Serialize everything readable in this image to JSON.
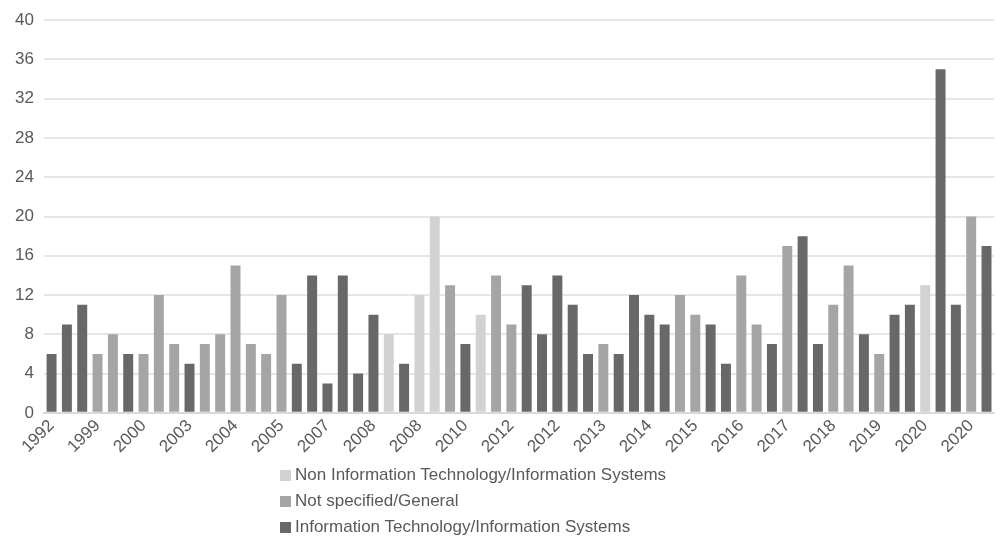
{
  "chart_data": {
    "type": "bar",
    "categories": [
      "1992",
      null,
      null,
      "1999",
      null,
      null,
      "2000",
      null,
      null,
      "2003",
      null,
      null,
      "2004",
      null,
      null,
      "2005",
      null,
      null,
      "2007",
      null,
      null,
      "2008",
      null,
      null,
      "2008",
      null,
      null,
      "2010",
      null,
      null,
      "2012",
      null,
      null,
      "2012",
      null,
      null,
      "2013",
      null,
      null,
      "2014",
      null,
      null,
      "2015",
      null,
      null,
      "2016",
      null,
      null,
      "2017",
      null,
      null,
      "2018",
      null,
      null,
      "2019",
      null,
      null,
      "2020",
      null,
      null,
      "2020",
      null
    ],
    "series": [
      {
        "name": "Non Information Technology/Information Systems",
        "color": "#d2d2d2",
        "values": [
          null,
          null,
          null,
          null,
          null,
          null,
          null,
          null,
          null,
          null,
          null,
          null,
          null,
          null,
          null,
          null,
          null,
          null,
          null,
          null,
          null,
          null,
          8,
          null,
          12,
          20,
          null,
          null,
          10,
          null,
          null,
          null,
          null,
          null,
          null,
          null,
          null,
          null,
          null,
          null,
          null,
          null,
          null,
          null,
          null,
          null,
          null,
          null,
          null,
          null,
          null,
          null,
          null,
          null,
          null,
          null,
          null,
          13,
          null,
          null,
          null,
          null
        ]
      },
      {
        "name": "Not specified/General",
        "color": "#a5a5a5",
        "values": [
          null,
          null,
          null,
          6,
          8,
          null,
          6,
          12,
          7,
          null,
          7,
          8,
          15,
          7,
          6,
          12,
          null,
          null,
          null,
          null,
          null,
          null,
          null,
          null,
          null,
          null,
          13,
          null,
          null,
          14,
          9,
          null,
          null,
          null,
          null,
          null,
          7,
          null,
          null,
          null,
          null,
          12,
          10,
          null,
          null,
          14,
          9,
          null,
          17,
          null,
          null,
          11,
          15,
          null,
          6,
          null,
          null,
          null,
          null,
          null,
          20,
          null
        ]
      },
      {
        "name": "Information Technology/Information Systems",
        "color": "#686868",
        "values": [
          6,
          9,
          11,
          null,
          null,
          6,
          null,
          null,
          null,
          5,
          null,
          null,
          null,
          null,
          null,
          null,
          5,
          14,
          3,
          14,
          4,
          10,
          null,
          5,
          null,
          null,
          null,
          7,
          null,
          null,
          null,
          13,
          8,
          14,
          11,
          6,
          null,
          6,
          12,
          10,
          9,
          null,
          null,
          9,
          5,
          null,
          null,
          7,
          null,
          18,
          7,
          null,
          null,
          8,
          null,
          10,
          11,
          null,
          35,
          11,
          null,
          17
        ]
      }
    ],
    "ylim": [
      0,
      40
    ],
    "yticks": [
      0,
      4,
      8,
      12,
      16,
      20,
      24,
      28,
      32,
      36,
      40
    ],
    "grid": "y",
    "legend": "bottom"
  }
}
